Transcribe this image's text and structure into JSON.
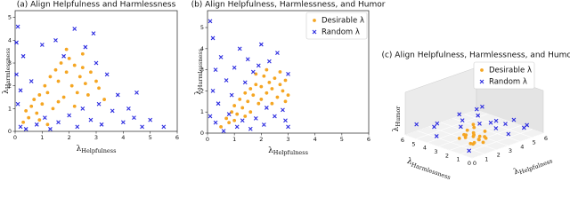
{
  "chart_data": [
    {
      "type": "scatter",
      "title": "(a) Align Helpfulness and Harmlessness",
      "xlabel": [
        "λ",
        "Helpfulness"
      ],
      "ylabel": [
        "λ",
        "Harmlessness"
      ],
      "xlim": [
        0,
        6
      ],
      "ylim": [
        0,
        5.3
      ],
      "xticks": [
        0,
        1,
        2,
        3,
        4,
        5,
        6
      ],
      "yticks": [
        0,
        1,
        2,
        3,
        4,
        5
      ],
      "series": [
        {
          "color": "#f5a623",
          "marker": "o",
          "x": [
            0.3,
            0.4,
            0.5,
            0.6,
            0.7,
            0.8,
            0.9,
            1.0,
            1.1,
            1.2,
            1.3,
            1.4,
            1.5,
            1.6,
            1.7,
            1.8,
            1.9,
            2.0,
            2.1,
            2.2,
            2.3,
            2.4,
            2.5,
            2.6,
            2.7,
            2.8,
            3.0,
            3.1,
            3.3,
            0.9,
            1.2,
            1.6,
            2.2,
            1.9,
            2.5
          ],
          "values": [
            0.4,
            0.9,
            0.6,
            1.1,
            1.4,
            0.8,
            1.6,
            1.2,
            2.0,
            1.7,
            2.4,
            1.0,
            2.7,
            2.2,
            3.0,
            1.5,
            2.6,
            3.2,
            2.0,
            2.9,
            1.7,
            2.4,
            3.4,
            2.1,
            1.6,
            2.6,
            2.2,
            1.9,
            1.4,
            0.5,
            0.3,
            1.3,
            1.1,
            3.6,
            2.8
          ]
        },
        {
          "color": "#2a2ae0",
          "marker": "x",
          "x": [
            0.1,
            0.05,
            0.2,
            0.1,
            0.3,
            0.4,
            0.6,
            0.8,
            1.0,
            1.1,
            1.3,
            1.5,
            1.6,
            1.8,
            2.0,
            2.2,
            2.3,
            2.5,
            2.6,
            2.8,
            3.0,
            3.1,
            3.2,
            3.4,
            3.6,
            3.8,
            4.0,
            4.2,
            4.4,
            4.5,
            4.7,
            5.0,
            5.5,
            0.05,
            0.2,
            2.9
          ],
          "values": [
            4.6,
            2.5,
            0.2,
            1.2,
            3.3,
            0.1,
            2.2,
            0.3,
            3.8,
            0.6,
            0.1,
            4.0,
            0.4,
            3.3,
            0.7,
            4.5,
            0.2,
            1.0,
            3.7,
            0.5,
            3.0,
            1.2,
            0.3,
            2.5,
            0.9,
            1.6,
            0.4,
            1.0,
            0.6,
            1.7,
            0.2,
            0.5,
            0.2,
            3.9,
            1.8,
            4.3
          ]
        }
      ]
    },
    {
      "type": "scatter",
      "title": "(b) Align Helpfulness, Harmlessness, and Humor",
      "xlabel": [
        "λ",
        "Helpfulness"
      ],
      "ylabel": [
        "λ",
        "Harmlessness"
      ],
      "xlim": [
        0,
        6
      ],
      "ylim": [
        0,
        5.8
      ],
      "xticks": [
        0,
        1,
        2,
        3,
        4,
        5,
        6
      ],
      "yticks": [
        0,
        1,
        2,
        3,
        4,
        5
      ],
      "legend": "upper right",
      "series": [
        {
          "name": "Desirable λ",
          "color": "#f5a623",
          "marker": "o",
          "x": [
            0.5,
            0.7,
            0.8,
            0.9,
            1.0,
            1.1,
            1.2,
            1.3,
            1.4,
            1.5,
            1.6,
            1.7,
            1.8,
            1.9,
            2.0,
            2.1,
            2.2,
            2.3,
            2.4,
            2.5,
            2.6,
            2.7,
            2.8,
            2.9,
            3.0,
            1.8,
            2.2,
            1.6,
            2.0,
            2.4,
            1.0,
            2.7,
            1.4,
            2.9
          ],
          "values": [
            0.3,
            0.7,
            0.5,
            1.0,
            1.3,
            0.9,
            1.6,
            1.2,
            1.9,
            1.5,
            2.1,
            1.8,
            2.3,
            1.4,
            2.2,
            2.7,
            1.9,
            2.4,
            2.1,
            2.6,
            1.7,
            2.3,
            2.0,
            2.5,
            1.8,
            2.8,
            3.0,
            1.0,
            1.6,
            1.4,
            0.6,
            2.9,
            0.8,
            1.5
          ]
        },
        {
          "name": "Random λ",
          "color": "#2a2ae0",
          "marker": "x",
          "x": [
            0.1,
            0.2,
            0.3,
            0.4,
            0.5,
            0.6,
            0.7,
            0.8,
            1.0,
            1.1,
            1.2,
            1.3,
            1.5,
            1.6,
            1.7,
            1.8,
            2.0,
            2.1,
            2.3,
            2.5,
            2.6,
            2.8,
            3.0,
            3.0,
            0.2,
            0.1,
            1.4,
            0.9,
            2.2,
            2.9,
            0.3,
            1.9
          ],
          "values": [
            5.3,
            4.5,
            0.5,
            1.4,
            3.6,
            0.1,
            2.5,
            0.9,
            3.1,
            0.3,
            4.0,
            0.6,
            3.5,
            0.2,
            2.9,
            0.7,
            4.2,
            0.4,
            3.4,
            0.8,
            3.8,
            1.1,
            0.3,
            2.8,
            2.0,
            0.8,
            2.4,
            1.8,
            1.2,
            0.6,
            3.0,
            3.2
          ]
        }
      ]
    },
    {
      "type": "scatter3d",
      "title": "(c) Align Helpfulness, Harmlessness, and Humor",
      "xlabel": [
        "λ",
        "Helpfulness"
      ],
      "ylabel": [
        "λ",
        "Harmlessness"
      ],
      "zlabel": [
        "λ",
        "Humor"
      ],
      "xlim": [
        0,
        6
      ],
      "ylim": [
        0,
        6
      ],
      "zlim": [
        0,
        6
      ],
      "xticks": [
        0,
        1,
        2,
        3,
        4,
        5,
        6
      ],
      "yticks": [
        0,
        1,
        2,
        3,
        4,
        5,
        6
      ],
      "grid": true,
      "legend": "upper right",
      "series": [
        {
          "name": "Desirable λ",
          "color": "#f5a623",
          "marker": "o",
          "x": [
            1.0,
            1.5,
            2.0,
            1.2,
            1.8,
            0.8,
            1.4,
            2.2,
            1.6,
            1.1,
            1.9,
            1.3,
            0.9,
            1.7,
            2.4,
            1.5,
            1.0,
            2.0,
            1.2,
            1.6
          ],
          "y": [
            1.2,
            1.0,
            1.5,
            2.0,
            1.8,
            1.4,
            0.8,
            1.1,
            2.3,
            1.6,
            0.9,
            1.3,
            2.1,
            1.7,
            1.4,
            0.6,
            0.9,
            2.0,
            1.1,
            1.5
          ],
          "values": [
            0.8,
            1.2,
            0.6,
            1.5,
            1.0,
            2.0,
            1.8,
            0.9,
            0.7,
            2.4,
            1.4,
            0.5,
            1.1,
            2.8,
            1.6,
            1.0,
            2.2,
            1.3,
            3.0,
            0.4
          ]
        },
        {
          "name": "Random λ",
          "color": "#2a2ae0",
          "marker": "x",
          "x": [
            0.3,
            2.5,
            4.0,
            1.0,
            3.2,
            0.5,
            5.0,
            2.0,
            1.5,
            3.8,
            0.8,
            4.5,
            2.8,
            1.2,
            3.5,
            0.2,
            5.5,
            2.2,
            4.2,
            1.8
          ],
          "y": [
            3.5,
            0.5,
            1.0,
            4.2,
            2.5,
            0.8,
            0.4,
            3.0,
            5.0,
            0.3,
            2.0,
            1.8,
            4.0,
            0.6,
            3.2,
            5.2,
            1.2,
            0.2,
            2.8,
            1.5
          ],
          "values": [
            1.0,
            3.5,
            0.5,
            2.0,
            4.0,
            0.3,
            1.5,
            2.5,
            0.8,
            3.0,
            4.6,
            1.2,
            0.6,
            3.8,
            2.2,
            1.8,
            0.4,
            2.8,
            1.0,
            5.0
          ]
        }
      ]
    }
  ]
}
